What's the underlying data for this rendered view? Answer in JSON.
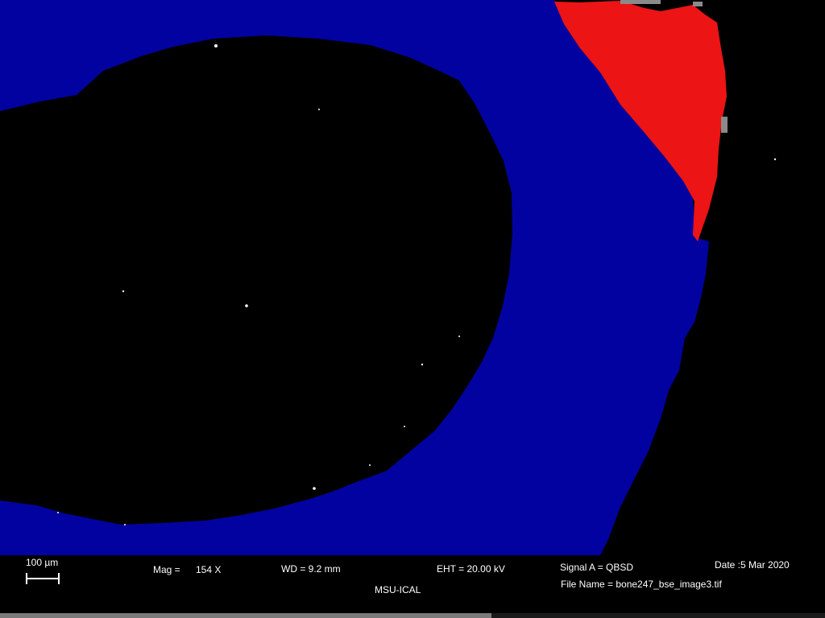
{
  "image": {
    "colors": {
      "background": "#000000",
      "bone_region": "#0202A0",
      "highlight_region": "#EC1414",
      "speckle": "#FFFFFF"
    }
  },
  "info_bar": {
    "scale_label": "100 µm",
    "mag_label": "Mag =",
    "mag_value": "154 X",
    "wd": "WD =  9.2 mm",
    "eht": "EHT = 20.00 kV",
    "signal": "Signal A = QBSD",
    "date": "Date :5 Mar 2020",
    "file_name": "File Name = bone247_bse_image3.tif",
    "institution": "MSU-ICAL"
  }
}
